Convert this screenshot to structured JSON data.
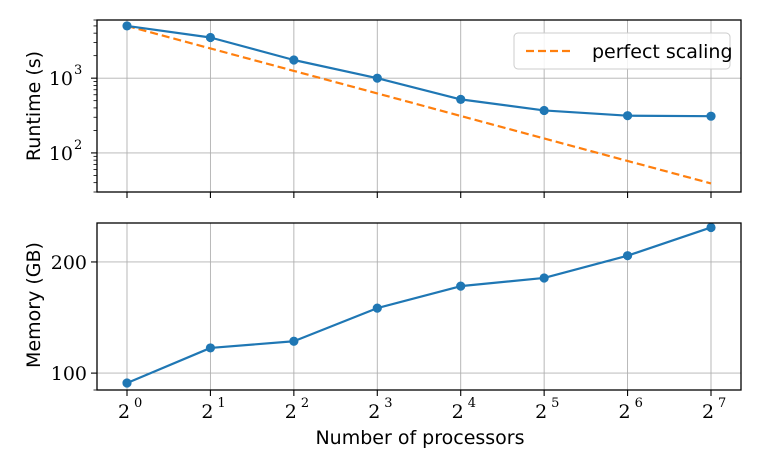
{
  "chart_data": [
    {
      "type": "line",
      "ylabel": "Runtime (s)",
      "xlabel": "",
      "yscale": "log",
      "ylim": [
        30,
        6000
      ],
      "grid": true,
      "legend_placement": "top-right",
      "x": [
        1,
        2,
        4,
        8,
        16,
        32,
        64,
        128
      ],
      "x_tick_labels": [
        {
          "base": "2",
          "exp": "0"
        },
        {
          "base": "2",
          "exp": "1"
        },
        {
          "base": "2",
          "exp": "2"
        },
        {
          "base": "2",
          "exp": "3"
        },
        {
          "base": "2",
          "exp": "4"
        },
        {
          "base": "2",
          "exp": "5"
        },
        {
          "base": "2",
          "exp": "6"
        },
        {
          "base": "2",
          "exp": "7"
        }
      ],
      "y_tick_labels": [
        {
          "value": 100,
          "base": "10",
          "exp": "2"
        },
        {
          "value": 1000,
          "base": "10",
          "exp": "3"
        }
      ],
      "series": [
        {
          "values": [
            5000,
            3500,
            1750,
            1000,
            520,
            370,
            315,
            310
          ],
          "color": "#1f77b4",
          "style": "solid",
          "marker": "circle"
        },
        {
          "name": "perfect scaling",
          "values": [
            5000,
            2500,
            1250,
            625,
            312.5,
            156.25,
            78.1,
            39.1
          ],
          "color": "#ff7f0e",
          "style": "dashed",
          "marker": "none"
        }
      ]
    },
    {
      "type": "line",
      "ylabel": "Memory (GB)",
      "xlabel": "Number of processors",
      "yscale": "log",
      "ylim": [
        90,
        255
      ],
      "grid": true,
      "x": [
        1,
        2,
        4,
        8,
        16,
        32,
        64,
        128
      ],
      "x_tick_labels": [
        {
          "base": "2",
          "exp": "0"
        },
        {
          "base": "2",
          "exp": "1"
        },
        {
          "base": "2",
          "exp": "2"
        },
        {
          "base": "2",
          "exp": "3"
        },
        {
          "base": "2",
          "exp": "4"
        },
        {
          "base": "2",
          "exp": "5"
        },
        {
          "base": "2",
          "exp": "6"
        },
        {
          "base": "2",
          "exp": "7"
        }
      ],
      "y_tick_labels": [
        {
          "value": 100,
          "text": "100"
        },
        {
          "value": 200,
          "text": "200"
        }
      ],
      "series": [
        {
          "values": [
            94,
            117,
            122,
            150,
            172,
            181,
            208,
            248
          ],
          "color": "#1f77b4",
          "style": "solid",
          "marker": "circle"
        }
      ]
    }
  ]
}
